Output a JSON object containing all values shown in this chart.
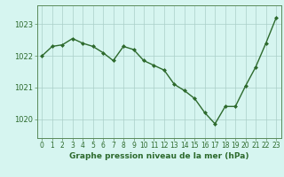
{
  "x": [
    0,
    1,
    2,
    3,
    4,
    5,
    6,
    7,
    8,
    9,
    10,
    11,
    12,
    13,
    14,
    15,
    16,
    17,
    18,
    19,
    20,
    21,
    22,
    23
  ],
  "y": [
    1022.0,
    1022.3,
    1022.35,
    1022.55,
    1022.4,
    1022.3,
    1022.1,
    1021.85,
    1022.3,
    1022.2,
    1021.85,
    1021.7,
    1021.55,
    1021.1,
    1020.9,
    1020.65,
    1020.2,
    1019.85,
    1020.4,
    1020.4,
    1021.05,
    1021.65,
    1022.4,
    1023.2
  ],
  "line_color": "#2d6a2d",
  "marker": "D",
  "markersize": 2.0,
  "linewidth": 1.0,
  "background_color": "#d6f5f0",
  "grid_color": "#aacfc8",
  "xlabel": "Graphe pression niveau de la mer (hPa)",
  "xlabel_fontsize": 6.5,
  "xlabel_color": "#2d6a2d",
  "ylabel_ticks": [
    1020,
    1021,
    1022,
    1023
  ],
  "ylim": [
    1019.4,
    1023.6
  ],
  "xlim": [
    -0.5,
    23.5
  ],
  "ytick_fontsize": 6.0,
  "xtick_fontsize": 5.5,
  "tick_color": "#2d6a2d",
  "spine_color": "#5a8a5a",
  "xtick_labels": [
    "0",
    "1",
    "2",
    "3",
    "4",
    "5",
    "6",
    "7",
    "8",
    "9",
    "10",
    "11",
    "12",
    "13",
    "14",
    "15",
    "16",
    "17",
    "18",
    "19",
    "20",
    "21",
    "22",
    "23"
  ]
}
